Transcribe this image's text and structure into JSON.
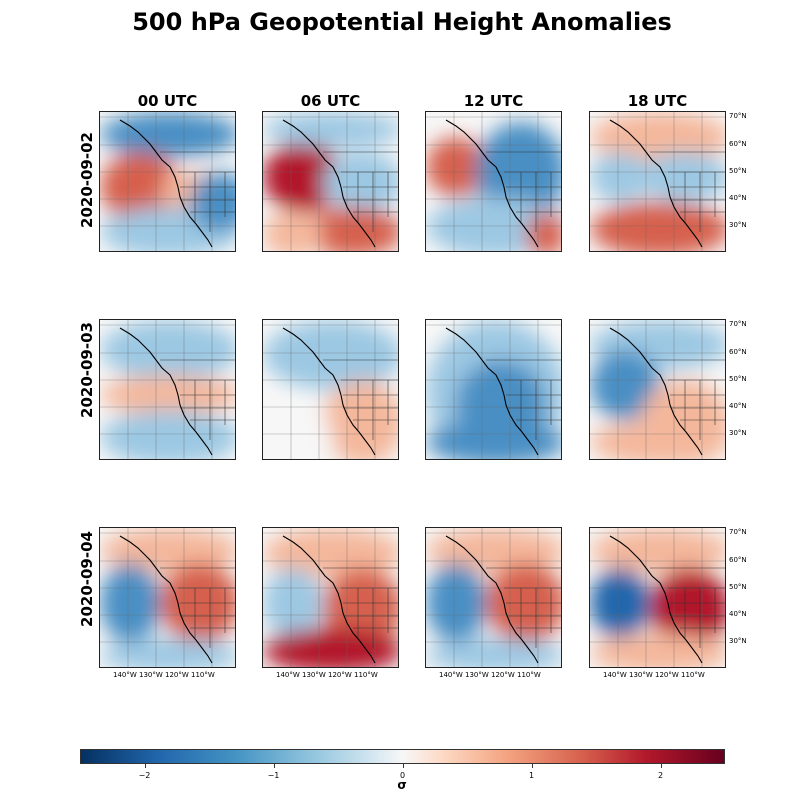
{
  "title": "500 hPa Geopotential Height Anomalies",
  "columns": [
    "00 UTC",
    "06 UTC",
    "12 UTC",
    "18 UTC"
  ],
  "rows": [
    "2020-09-02",
    "2020-09-03",
    "2020-09-04"
  ],
  "lat_labels": [
    "70°N",
    "60°N",
    "50°N",
    "40°N",
    "30°N"
  ],
  "lon_labels": "140°W 130°W 120°W 110°W",
  "colorbar": {
    "label": "σ",
    "ticks": [
      "−2",
      "−1",
      "0",
      "1",
      "2"
    ],
    "range": [
      -2.5,
      2.5
    ],
    "colormap": "RdBu_r",
    "colors": {
      "neg": "#2166ac",
      "zero": "#f7f7f7",
      "pos": "#b2182b"
    }
  },
  "panels": [
    {
      "row": "2020-09-02",
      "col": "00 UTC",
      "pattern": "blue-north-red-west-blue-south"
    },
    {
      "row": "2020-09-02",
      "col": "06 UTC",
      "pattern": "red-west-blue-north"
    },
    {
      "row": "2020-09-02",
      "col": "12 UTC",
      "pattern": "blue-central-red-west"
    },
    {
      "row": "2020-09-02",
      "col": "18 UTC",
      "pattern": "mixed-red-south"
    },
    {
      "row": "2020-09-03",
      "col": "00 UTC",
      "pattern": "weak-mixed"
    },
    {
      "row": "2020-09-03",
      "col": "06 UTC",
      "pattern": "weak-mixed-red-southeast"
    },
    {
      "row": "2020-09-03",
      "col": "12 UTC",
      "pattern": "blue-dominant"
    },
    {
      "row": "2020-09-03",
      "col": "18 UTC",
      "pattern": "blue-west-red-south"
    },
    {
      "row": "2020-09-04",
      "col": "00 UTC",
      "pattern": "blue-west-red-east"
    },
    {
      "row": "2020-09-04",
      "col": "06 UTC",
      "pattern": "red-east-blue-coast"
    },
    {
      "row": "2020-09-04",
      "col": "12 UTC",
      "pattern": "blue-west-red-east"
    },
    {
      "row": "2020-09-04",
      "col": "18 UTC",
      "pattern": "strong-blue-west-red-east"
    }
  ]
}
